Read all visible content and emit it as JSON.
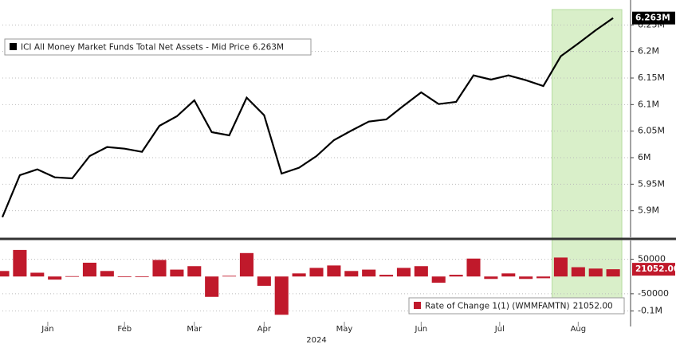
{
  "chart_data": [
    {
      "type": "line",
      "series": [
        {
          "name": "ICI All Money Market Funds Total Net Assets - Mid Price",
          "color": "#000000",
          "last_label": "6.263M",
          "values": [
            5.888,
            5.967,
            5.978,
            5.963,
            5.961,
            6.003,
            6.02,
            6.017,
            6.011,
            6.06,
            6.078,
            6.108,
            6.048,
            6.042,
            6.113,
            6.08,
            5.97,
            5.981,
            6.003,
            6.033,
            6.051,
            6.068,
            6.072,
            6.098,
            6.123,
            6.101,
            6.105,
            6.155,
            6.147,
            6.155,
            6.146,
            6.135,
            6.191,
            6.215,
            6.24,
            6.263
          ]
        }
      ],
      "x": [
        0,
        1,
        2,
        3,
        4,
        5,
        6,
        7,
        8,
        9,
        10,
        11,
        12,
        13,
        14,
        15,
        16,
        17,
        18,
        19,
        20,
        21,
        22,
        23,
        24,
        25,
        26,
        27,
        28,
        29,
        30,
        31,
        32,
        33,
        34,
        35
      ],
      "xlim": [
        0,
        36
      ],
      "highlight": [
        31.5,
        35.5
      ],
      "highlight_color": "#d9efc9",
      "ylim": [
        5.85,
        6.297
      ],
      "yticks": [
        {
          "value": 5.9,
          "label": "5.9M"
        },
        {
          "value": 5.95,
          "label": "5.95M"
        },
        {
          "value": 6.0,
          "label": "6M"
        },
        {
          "value": 6.05,
          "label": "6.05M"
        },
        {
          "value": 6.1,
          "label": "6.1M"
        },
        {
          "value": 6.15,
          "label": "6.15M"
        },
        {
          "value": 6.2,
          "label": "6.2M"
        },
        {
          "value": 6.25,
          "label": "6.25M"
        }
      ],
      "grid": true
    },
    {
      "type": "bar",
      "series": [
        {
          "name": "Rate of Change 1(1) (WMMFAMTN)",
          "color": "#c0192b",
          "last_label": "21052.00",
          "values": [
            16000,
            77000,
            11000,
            -9000,
            1000,
            40000,
            16000,
            -1000,
            -1000,
            48000,
            20000,
            30000,
            -59000,
            2000,
            68000,
            -27000,
            -111000,
            9000,
            25000,
            32000,
            16000,
            20000,
            5000,
            25000,
            30000,
            -18000,
            5000,
            52000,
            -7000,
            9000,
            -7000,
            -5000,
            55000,
            27000,
            23000,
            21052
          ]
        }
      ],
      "x": [
        0,
        1,
        2,
        3,
        4,
        5,
        6,
        7,
        8,
        9,
        10,
        11,
        12,
        13,
        14,
        15,
        16,
        17,
        18,
        19,
        20,
        21,
        22,
        23,
        24,
        25,
        26,
        27,
        28,
        29,
        30,
        31,
        32,
        33,
        34,
        35
      ],
      "xlim": [
        0,
        36
      ],
      "ylim": [
        -145000,
        104500
      ],
      "yticks": [
        50000,
        -50000,
        {
          "value": -100000,
          "label": "-0.1M"
        }
      ],
      "xticks": [
        {
          "value": 2.6,
          "label": "Jan"
        },
        {
          "value": 7,
          "label": "Feb"
        },
        {
          "value": 11,
          "label": "Mar"
        },
        {
          "value": 15,
          "label": "Apr"
        },
        {
          "value": 19.6,
          "label": "May"
        },
        {
          "value": 24,
          "label": "Jun"
        },
        {
          "value": 28.5,
          "label": "Jul"
        },
        {
          "value": 33,
          "label": "Aug"
        }
      ],
      "year_label": {
        "value": 18,
        "label": "2024"
      },
      "grid": true
    }
  ]
}
